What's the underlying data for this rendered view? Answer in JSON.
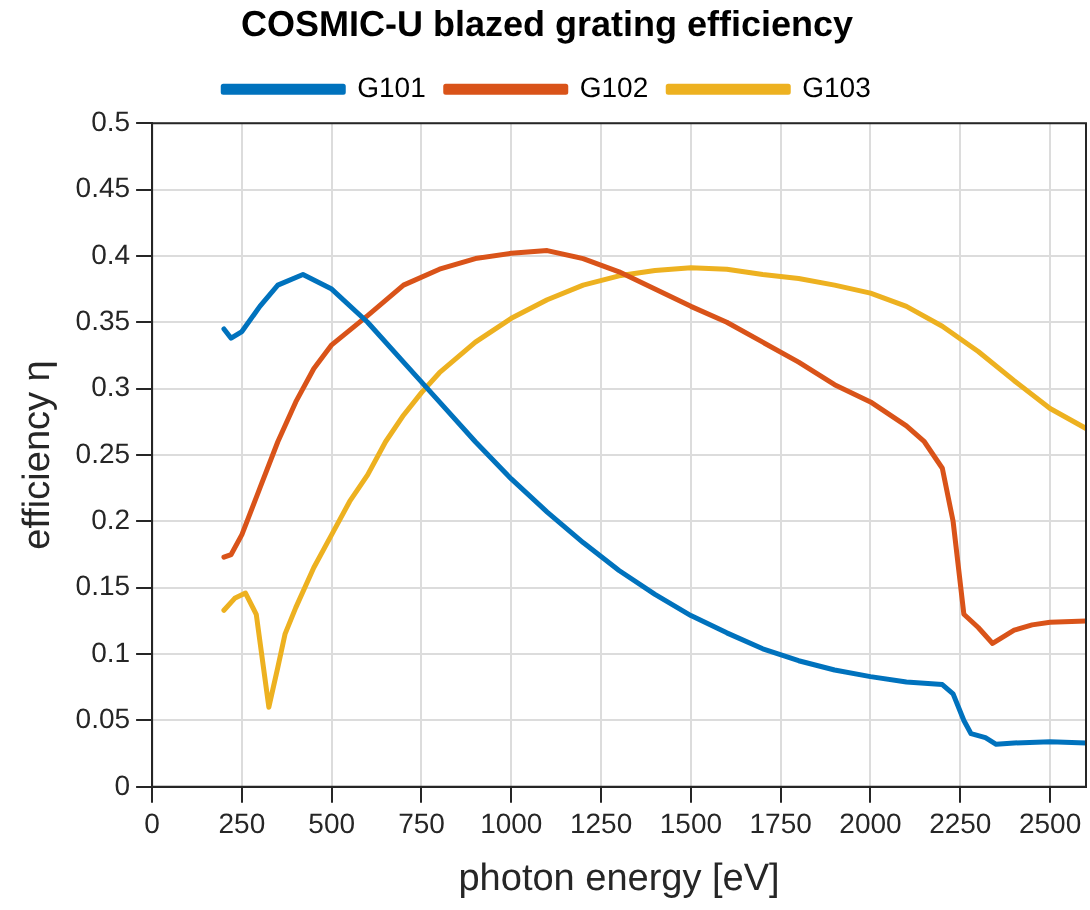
{
  "chart_data": {
    "type": "line",
    "title": "COSMIC-U blazed grating efficiency",
    "xlabel": "photon energy [eV]",
    "ylabel": "efficiency η",
    "xlim": [
      0,
      2600
    ],
    "xticks": [
      0,
      250,
      500,
      750,
      1000,
      1250,
      1500,
      1750,
      2000,
      2250,
      2500
    ],
    "ylim": [
      0,
      0.5
    ],
    "yticks": [
      0,
      0.05,
      0.1,
      0.15,
      0.2,
      0.25,
      0.3,
      0.35,
      0.4,
      0.45,
      0.5
    ],
    "grid": true,
    "legend": "top",
    "marker": "none",
    "line_style": "solid",
    "series": [
      {
        "name": "G101",
        "color": "#0072bd",
        "x": [
          200,
          220,
          250,
          300,
          350,
          420,
          500,
          600,
          700,
          800,
          900,
          1000,
          1100,
          1200,
          1300,
          1400,
          1500,
          1600,
          1700,
          1800,
          1900,
          2000,
          2100,
          2200,
          2230,
          2260,
          2280,
          2320,
          2350,
          2400,
          2500,
          2600
        ],
        "values": [
          0.345,
          0.338,
          0.343,
          0.362,
          0.378,
          0.386,
          0.375,
          0.35,
          0.32,
          0.29,
          0.26,
          0.232,
          0.207,
          0.184,
          0.163,
          0.145,
          0.129,
          0.116,
          0.104,
          0.095,
          0.088,
          0.083,
          0.079,
          0.077,
          0.07,
          0.05,
          0.04,
          0.037,
          0.032,
          0.033,
          0.034,
          0.033
        ]
      },
      {
        "name": "G102",
        "color": "#d95319",
        "x": [
          200,
          220,
          250,
          300,
          350,
          400,
          450,
          500,
          600,
          700,
          800,
          900,
          1000,
          1100,
          1200,
          1300,
          1400,
          1500,
          1600,
          1700,
          1800,
          1900,
          2000,
          2100,
          2150,
          2200,
          2230,
          2260,
          2300,
          2340,
          2400,
          2450,
          2500,
          2600
        ],
        "values": [
          0.173,
          0.175,
          0.19,
          0.225,
          0.26,
          0.29,
          0.315,
          0.333,
          0.355,
          0.378,
          0.39,
          0.398,
          0.402,
          0.404,
          0.398,
          0.388,
          0.375,
          0.362,
          0.35,
          0.335,
          0.32,
          0.303,
          0.29,
          0.272,
          0.26,
          0.24,
          0.2,
          0.13,
          0.12,
          0.108,
          0.118,
          0.122,
          0.124,
          0.125
        ]
      },
      {
        "name": "G103",
        "color": "#edb120",
        "x": [
          200,
          230,
          260,
          290,
          310,
          325,
          350,
          370,
          400,
          450,
          500,
          550,
          600,
          650,
          700,
          750,
          800,
          900,
          1000,
          1100,
          1200,
          1300,
          1400,
          1500,
          1600,
          1700,
          1800,
          1900,
          2000,
          2100,
          2200,
          2300,
          2400,
          2500,
          2600
        ],
        "values": [
          0.133,
          0.142,
          0.146,
          0.13,
          0.09,
          0.06,
          0.09,
          0.115,
          0.135,
          0.165,
          0.19,
          0.215,
          0.235,
          0.26,
          0.28,
          0.297,
          0.312,
          0.335,
          0.353,
          0.367,
          0.378,
          0.385,
          0.389,
          0.391,
          0.39,
          0.386,
          0.383,
          0.378,
          0.372,
          0.362,
          0.347,
          0.328,
          0.306,
          0.285,
          0.27
        ]
      }
    ]
  }
}
